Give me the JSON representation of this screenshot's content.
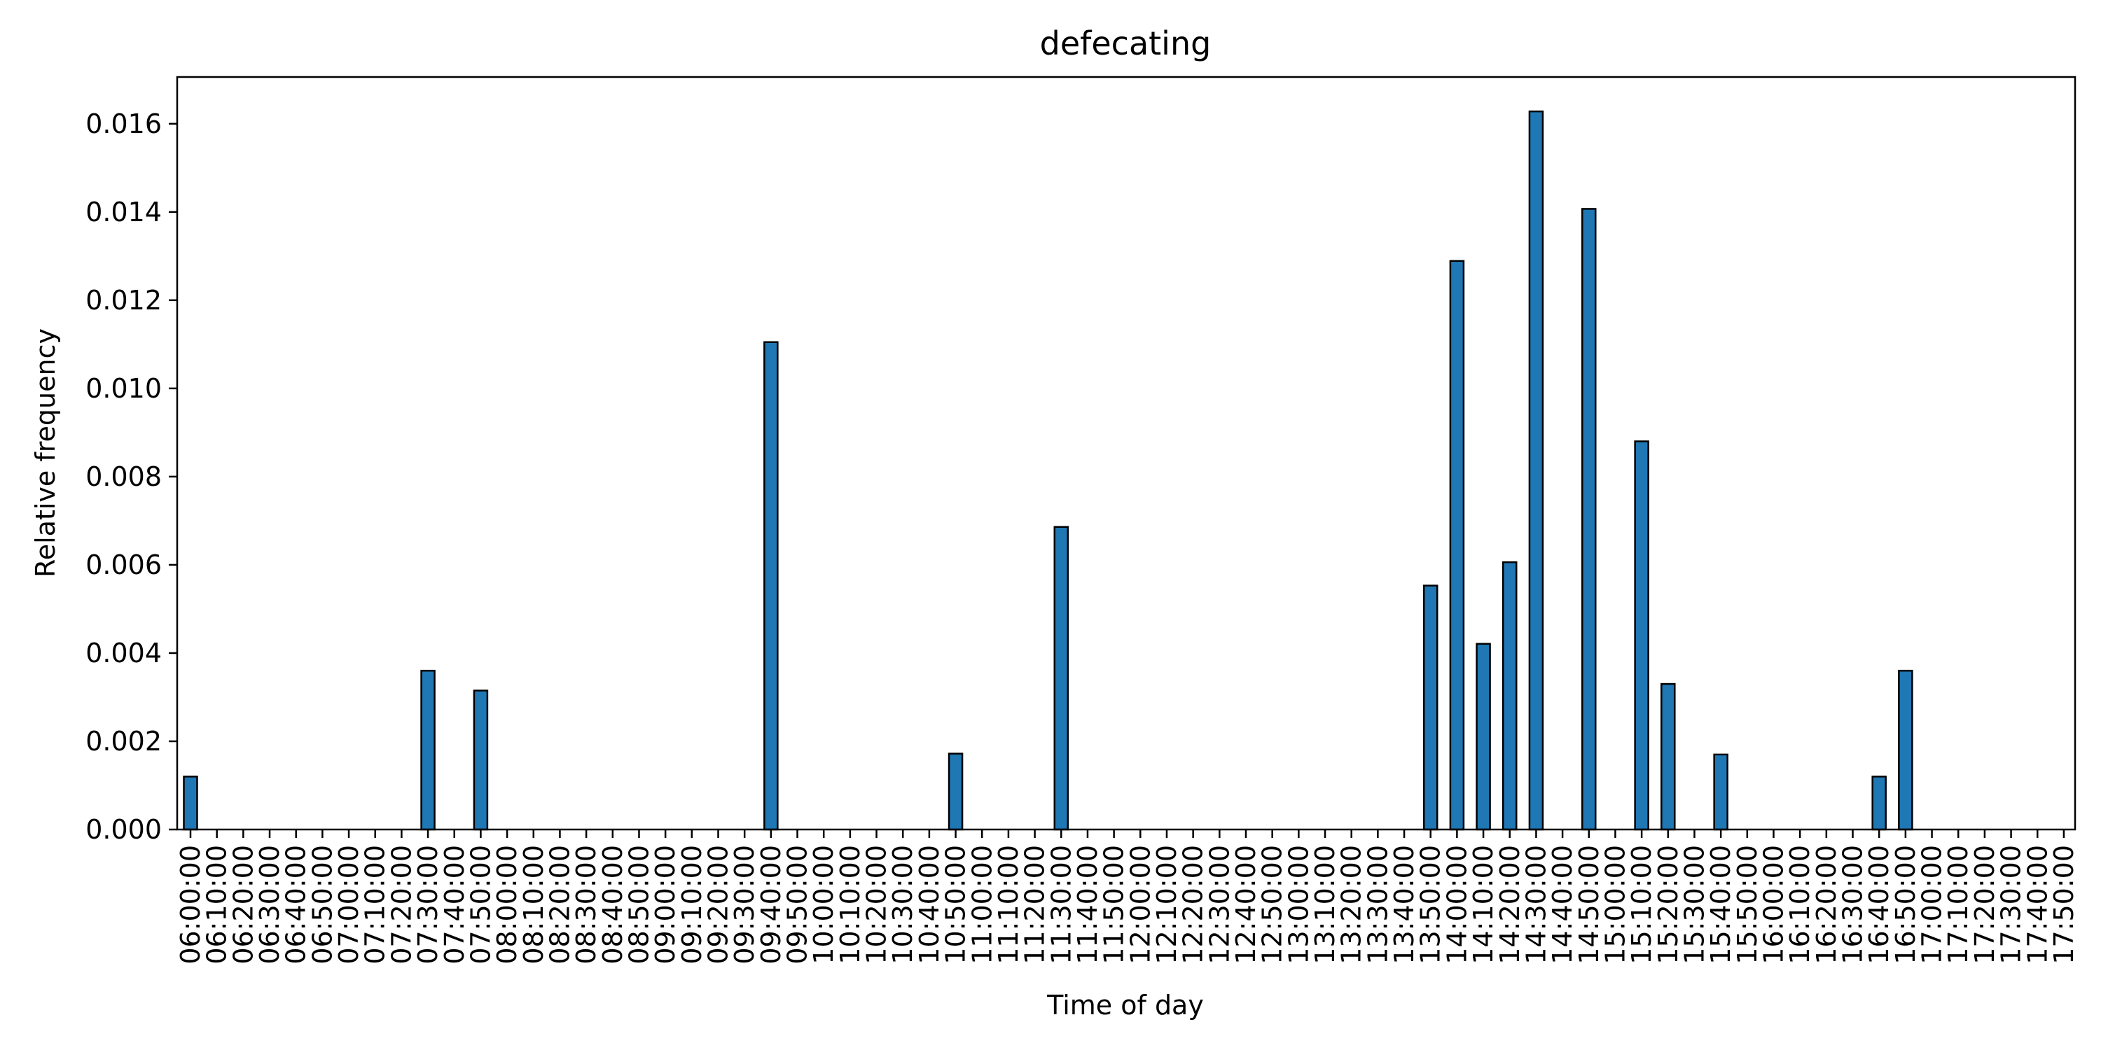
{
  "chart_data": {
    "type": "bar",
    "title": "defecating",
    "xlabel": "Time of day",
    "ylabel": "Relative frequency",
    "ylim": [
      0,
      0.01706
    ],
    "yticks": [
      "0.000",
      "0.002",
      "0.004",
      "0.006",
      "0.008",
      "0.010",
      "0.012",
      "0.014",
      "0.016"
    ],
    "grid": false,
    "categories": [
      "06:00:00",
      "06:10:00",
      "06:20:00",
      "06:30:00",
      "06:40:00",
      "06:50:00",
      "07:00:00",
      "07:10:00",
      "07:20:00",
      "07:30:00",
      "07:40:00",
      "07:50:00",
      "08:00:00",
      "08:10:00",
      "08:20:00",
      "08:30:00",
      "08:40:00",
      "08:50:00",
      "09:00:00",
      "09:10:00",
      "09:20:00",
      "09:30:00",
      "09:40:00",
      "09:50:00",
      "10:00:00",
      "10:10:00",
      "10:20:00",
      "10:30:00",
      "10:40:00",
      "10:50:00",
      "11:00:00",
      "11:10:00",
      "11:20:00",
      "11:30:00",
      "11:40:00",
      "11:50:00",
      "12:00:00",
      "12:10:00",
      "12:20:00",
      "12:30:00",
      "12:40:00",
      "12:50:00",
      "13:00:00",
      "13:10:00",
      "13:20:00",
      "13:30:00",
      "13:40:00",
      "13:50:00",
      "14:00:00",
      "14:10:00",
      "14:20:00",
      "14:30:00",
      "14:40:00",
      "14:50:00",
      "15:00:00",
      "15:10:00",
      "15:20:00",
      "15:30:00",
      "15:40:00",
      "15:50:00",
      "16:00:00",
      "16:10:00",
      "16:20:00",
      "16:30:00",
      "16:40:00",
      "16:50:00",
      "17:00:00",
      "17:10:00",
      "17:20:00",
      "17:30:00",
      "17:40:00",
      "17:50:00"
    ],
    "values": [
      0.0012,
      0,
      0,
      0,
      0,
      0,
      0,
      0,
      0,
      0.0036,
      0,
      0.00315,
      0,
      0,
      0,
      0,
      0,
      0,
      0,
      0,
      0,
      0,
      0.01105,
      0,
      0,
      0,
      0,
      0,
      0,
      0.00172,
      0,
      0,
      0,
      0.00686,
      0,
      0,
      0,
      0,
      0,
      0,
      0,
      0,
      0,
      0,
      0,
      0,
      0,
      0.00553,
      0.01289,
      0.00421,
      0.00606,
      0.01628,
      0,
      0.01407,
      0,
      0.0088,
      0.0033,
      0,
      0.0017,
      0,
      0,
      0,
      0,
      0,
      0.0012,
      0.0036,
      0,
      0,
      0,
      0,
      0,
      0
    ],
    "colors": {
      "bar": "#1f77b4",
      "edge": "#000000"
    }
  }
}
